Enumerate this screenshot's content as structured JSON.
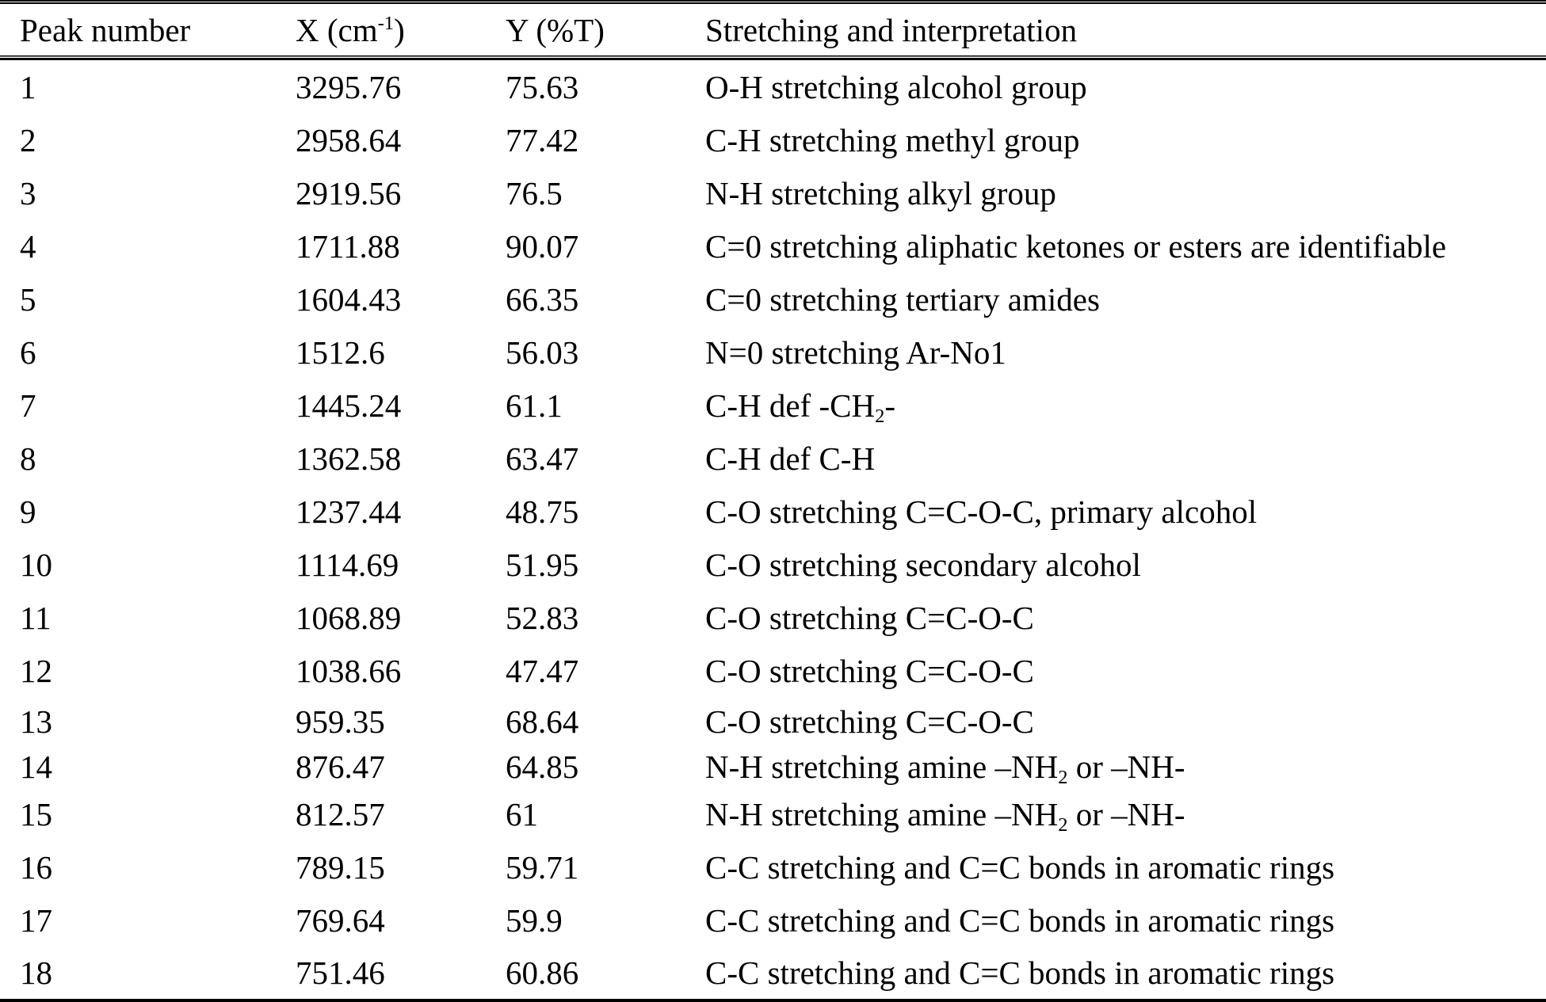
{
  "colors": {
    "text": "#000000",
    "background": "#ffffff",
    "rule": "#000000"
  },
  "table": {
    "columns": [
      {
        "id": "peak",
        "label": [
          {
            "t": "Peak number"
          }
        ]
      },
      {
        "id": "x",
        "label": [
          {
            "t": "X (cm"
          },
          {
            "t": "-1",
            "s": "sup"
          },
          {
            "t": ")"
          }
        ]
      },
      {
        "id": "y",
        "label": [
          {
            "t": "Y (%T)"
          }
        ]
      },
      {
        "id": "interp",
        "label": [
          {
            "t": "Stretching and interpretation"
          }
        ]
      }
    ],
    "rows": [
      {
        "peak": "1",
        "x": "3295.76",
        "y": "75.63",
        "interp": [
          {
            "t": "O-H stretching alcohol group"
          }
        ]
      },
      {
        "peak": "2",
        "x": "2958.64",
        "y": "77.42",
        "interp": [
          {
            "t": "C-H stretching methyl group"
          }
        ]
      },
      {
        "peak": "3",
        "x": "2919.56",
        "y": "76.5",
        "interp": [
          {
            "t": "N-H stretching alkyl group"
          }
        ]
      },
      {
        "peak": "4",
        "x": "1711.88",
        "y": "90.07",
        "interp": [
          {
            "t": "C=0 stretching aliphatic ketones or esters are identifiable"
          }
        ]
      },
      {
        "peak": "5",
        "x": "1604.43",
        "y": "66.35",
        "interp": [
          {
            "t": "C=0 stretching tertiary amides"
          }
        ]
      },
      {
        "peak": "6",
        "x": "1512.6",
        "y": "56.03",
        "interp": [
          {
            "t": "N=0 stretching Ar-No1"
          }
        ]
      },
      {
        "peak": "7",
        "x": "1445.24",
        "y": "61.1",
        "interp": [
          {
            "t": "C-H def -CH"
          },
          {
            "t": "2",
            "s": "sub"
          },
          {
            "t": "-"
          }
        ]
      },
      {
        "peak": "8",
        "x": "1362.58",
        "y": "63.47",
        "interp": [
          {
            "t": "C-H def C-H"
          }
        ]
      },
      {
        "peak": "9",
        "x": "1237.44",
        "y": "48.75",
        "interp": [
          {
            "t": "C-O stretching C=C-O-C, primary alcohol"
          }
        ]
      },
      {
        "peak": "10",
        "x": "1114.69",
        "y": "51.95",
        "interp": [
          {
            "t": "C-O stretching secondary alcohol"
          }
        ]
      },
      {
        "peak": "11",
        "x": "1068.89",
        "y": "52.83",
        "interp": [
          {
            "t": "C-O stretching C=C-O-C"
          }
        ]
      },
      {
        "peak": "12",
        "x": "1038.66",
        "y": "47.47",
        "interp": [
          {
            "t": "C-O stretching C=C-O-C"
          }
        ]
      },
      {
        "peak": "13",
        "x": "959.35",
        "y": "68.64",
        "interp": [
          {
            "t": "C-O stretching C=C-O-C"
          }
        ]
      },
      {
        "peak": "14",
        "x": "876.47",
        "y": "64.85",
        "interp": [
          {
            "t": "N-H stretching amine –NH"
          },
          {
            "t": "2",
            "s": "sub"
          },
          {
            "t": " or –NH-"
          }
        ]
      },
      {
        "peak": "15",
        "x": "812.57",
        "y": "61",
        "interp": [
          {
            "t": "N-H stretching amine –NH"
          },
          {
            "t": "2",
            "s": "sub"
          },
          {
            "t": " or –NH-"
          }
        ]
      },
      {
        "peak": "16",
        "x": "789.15",
        "y": "59.71",
        "interp": [
          {
            "t": "C-C stretching and C=C bonds in aromatic rings"
          }
        ]
      },
      {
        "peak": "17",
        "x": "769.64",
        "y": "59.9",
        "interp": [
          {
            "t": "C-C stretching and C=C bonds in aromatic rings"
          }
        ]
      },
      {
        "peak": "18",
        "x": "751.46",
        "y": "60.86",
        "interp": [
          {
            "t": "C-C stretching and C=C bonds in aromatic rings"
          }
        ]
      }
    ]
  }
}
